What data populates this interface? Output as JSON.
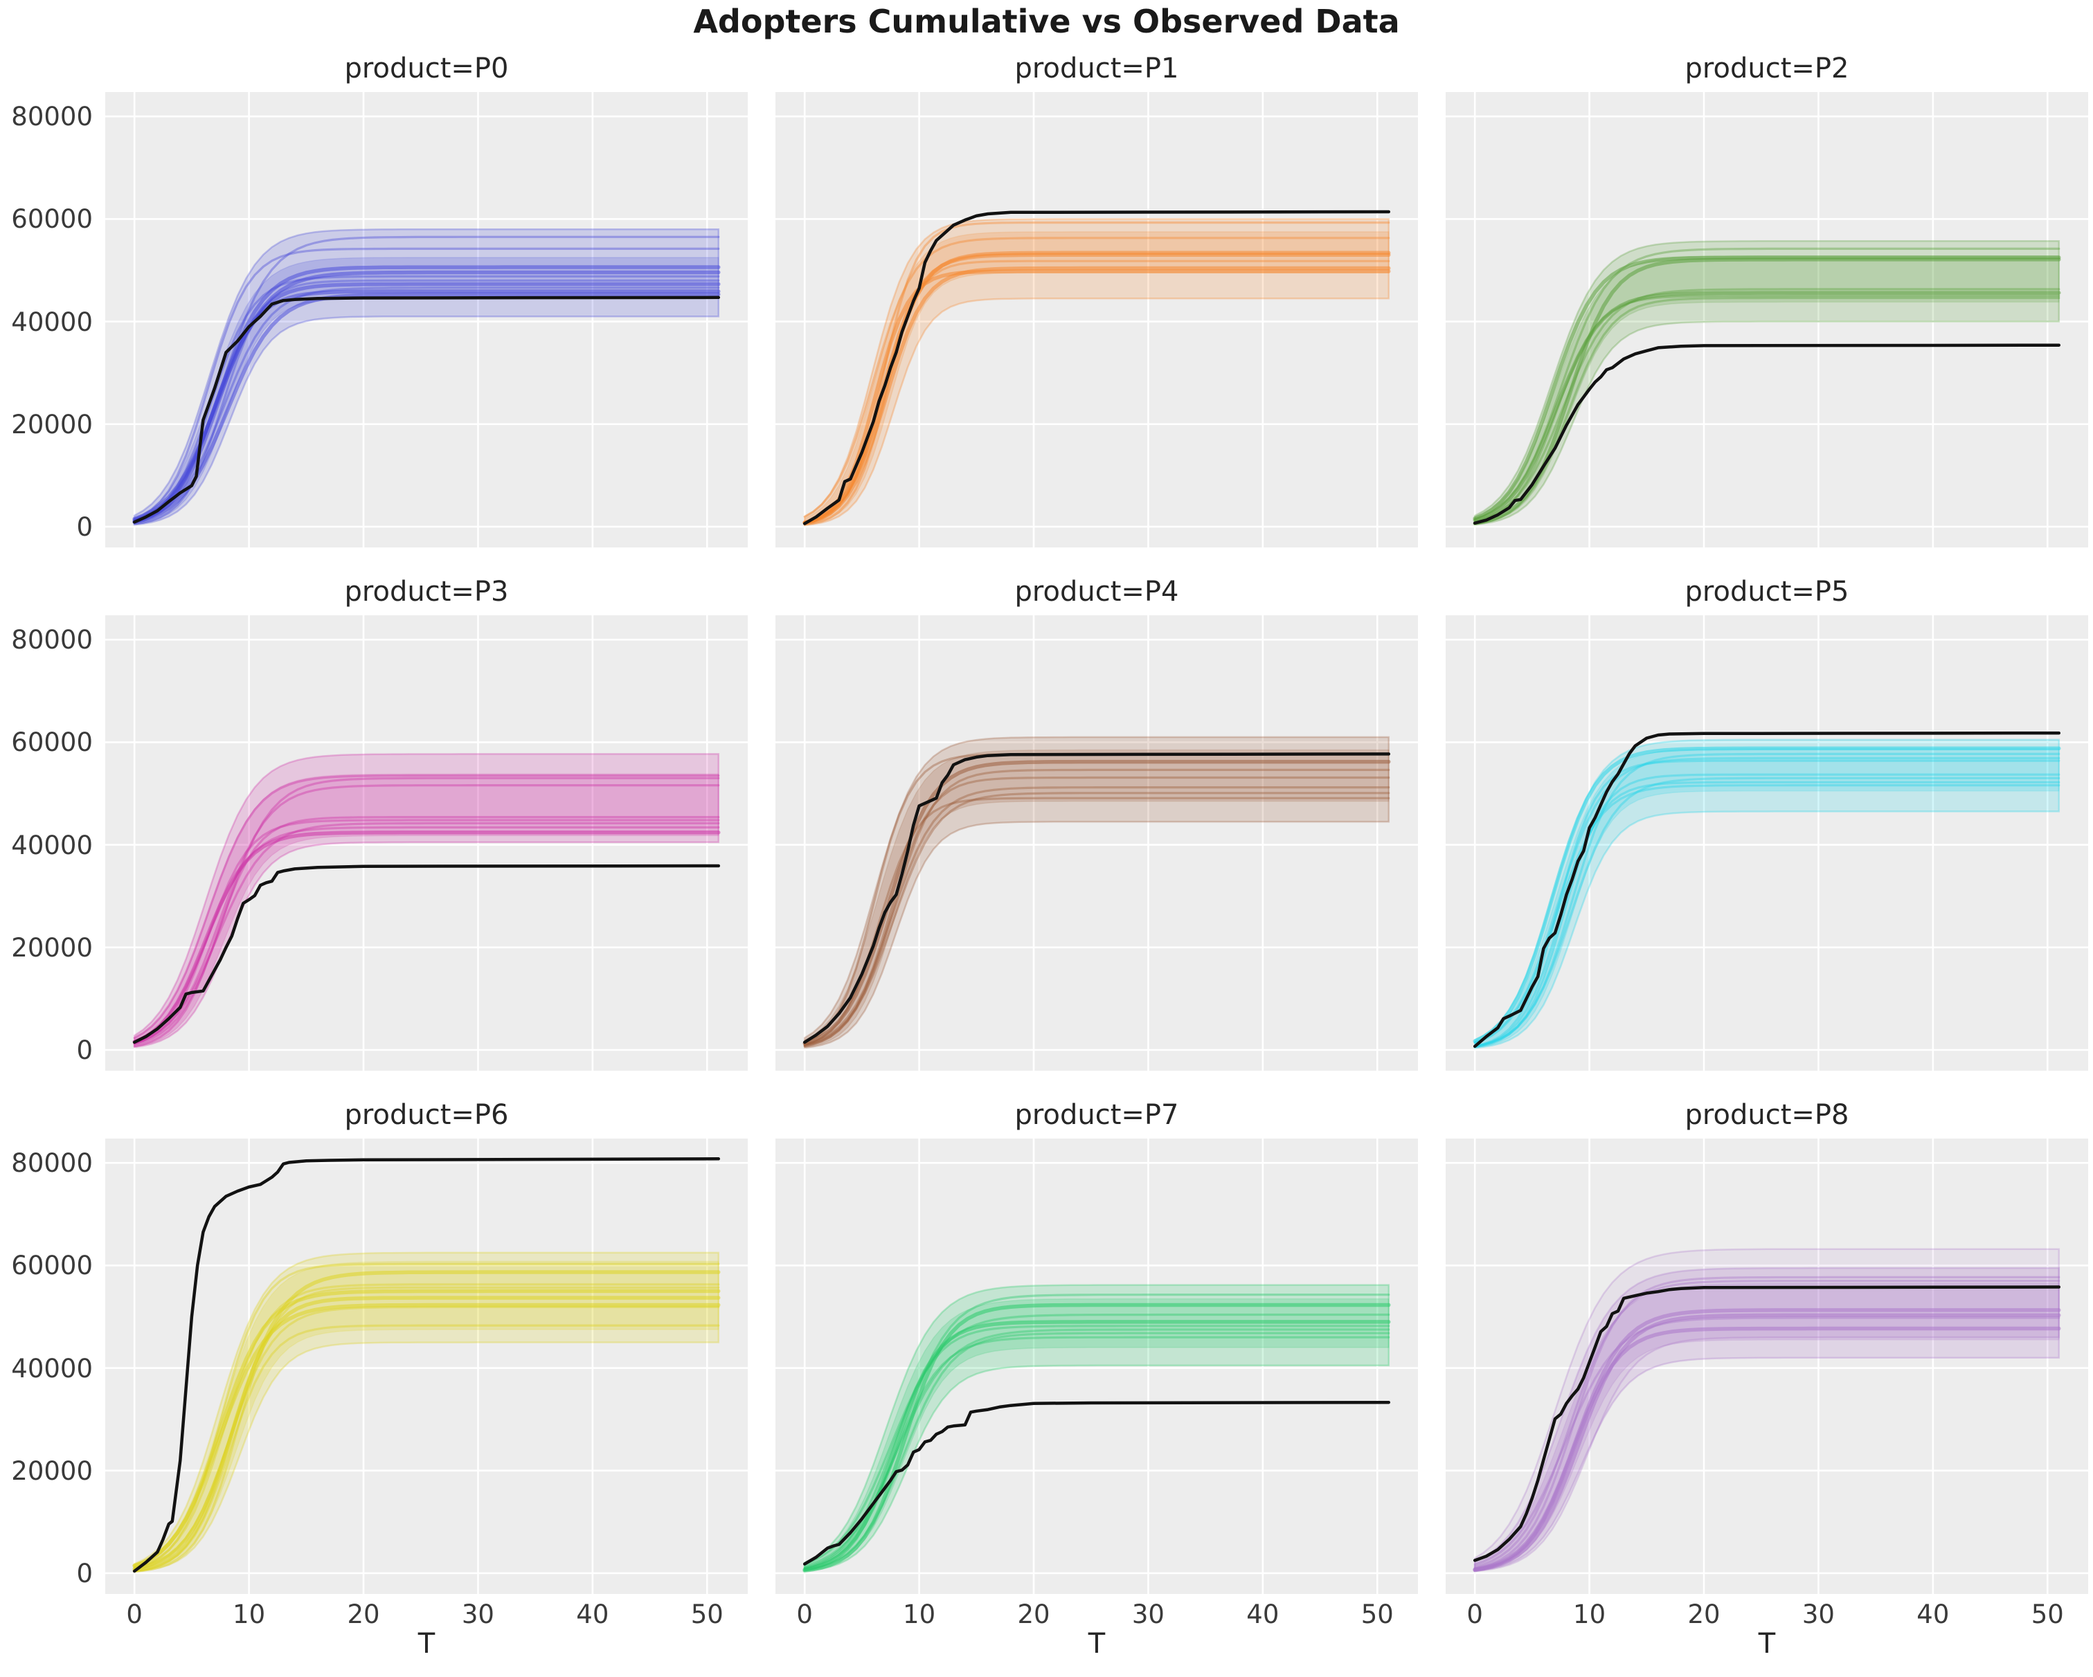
{
  "figure": {
    "title": "Adopters Cumulative vs Observed Data",
    "panel_background": "#ededed",
    "grid_color": "#ffffff",
    "observed_color": "#121212",
    "text_color": "#262626"
  },
  "x_axis": {
    "label": "T",
    "ticks": [
      0,
      10,
      20,
      30,
      40,
      50
    ],
    "range": [
      -2.55,
      53.55
    ]
  },
  "y_axis": {
    "ticks": [
      0,
      20000,
      40000,
      60000,
      80000
    ],
    "range": [
      -4050,
      84750
    ]
  },
  "chart_data": [
    {
      "type": "line",
      "product": "P0",
      "title": "product=P0",
      "color": "#4749d8",
      "band": {
        "plateau_low": 41000,
        "plateau_high": 58000,
        "midpoint": 7.2,
        "rate": 0.52
      },
      "inner_band": {
        "plateau_low": 44500,
        "plateau_high": 52500
      },
      "draw_plateaus": [
        56500,
        54200,
        50600,
        49600,
        48800,
        48000,
        47300,
        46600,
        45900,
        45300
      ],
      "observed": {
        "points": [
          [
            0,
            900
          ],
          [
            1,
            1900
          ],
          [
            2,
            3100
          ],
          [
            3,
            4900
          ],
          [
            4,
            6600
          ],
          [
            5,
            8000
          ],
          [
            5.4,
            9800
          ],
          [
            6,
            20800
          ],
          [
            7,
            27000
          ],
          [
            8,
            34000
          ],
          [
            9,
            36200
          ],
          [
            10,
            39000
          ],
          [
            11,
            41000
          ],
          [
            12,
            43400
          ],
          [
            13,
            44100
          ],
          [
            14,
            44300
          ],
          [
            16,
            44500
          ],
          [
            20,
            44600
          ],
          [
            51,
            44700
          ]
        ]
      }
    },
    {
      "type": "line",
      "product": "P1",
      "title": "product=P1",
      "color": "#f5862c",
      "band": {
        "plateau_low": 44500,
        "plateau_high": 60000,
        "midpoint": 6.6,
        "rate": 0.6
      },
      "inner_band": {
        "plateau_low": 49500,
        "plateau_high": 57500
      },
      "draw_plateaus": [
        59300,
        56300,
        53400,
        53000,
        51800,
        50400,
        49800
      ],
      "observed": {
        "points": [
          [
            0,
            600
          ],
          [
            1,
            1900
          ],
          [
            2,
            3600
          ],
          [
            3,
            5200
          ],
          [
            3.5,
            8800
          ],
          [
            4,
            9300
          ],
          [
            5,
            14500
          ],
          [
            6,
            20500
          ],
          [
            6.5,
            24500
          ],
          [
            7,
            27500
          ],
          [
            7.5,
            31000
          ],
          [
            8,
            34000
          ],
          [
            8.5,
            38000
          ],
          [
            9,
            41000
          ],
          [
            9.5,
            44000
          ],
          [
            10,
            46500
          ],
          [
            10.5,
            51500
          ],
          [
            11,
            53800
          ],
          [
            11.5,
            55800
          ],
          [
            12,
            56800
          ],
          [
            13,
            58800
          ],
          [
            14,
            59800
          ],
          [
            15,
            60600
          ],
          [
            16,
            61000
          ],
          [
            18,
            61300
          ],
          [
            51,
            61400
          ]
        ]
      }
    },
    {
      "type": "line",
      "product": "P2",
      "title": "product=P2",
      "color": "#58a03a",
      "band": {
        "plateau_low": 40000,
        "plateau_high": 55700,
        "midpoint": 7.4,
        "rate": 0.5
      },
      "inner_band": {
        "plateau_low": 43800,
        "plateau_high": 52800
      },
      "draw_plateaus": [
        54200,
        52500,
        52100,
        46300,
        45600,
        45000,
        44600
      ],
      "observed": {
        "points": [
          [
            0,
            700
          ],
          [
            1,
            1300
          ],
          [
            2,
            2300
          ],
          [
            3,
            3700
          ],
          [
            3.5,
            5100
          ],
          [
            4,
            5300
          ],
          [
            5,
            8200
          ],
          [
            6,
            11800
          ],
          [
            7,
            15300
          ],
          [
            8,
            19800
          ],
          [
            9,
            23800
          ],
          [
            10,
            26800
          ],
          [
            10.5,
            28200
          ],
          [
            11,
            29200
          ],
          [
            11.5,
            30600
          ],
          [
            12,
            31000
          ],
          [
            13,
            32700
          ],
          [
            14,
            33700
          ],
          [
            15,
            34300
          ],
          [
            16,
            34900
          ],
          [
            18,
            35200
          ],
          [
            20,
            35300
          ],
          [
            51,
            35400
          ]
        ]
      }
    },
    {
      "type": "line",
      "product": "P3",
      "title": "product=P3",
      "color": "#cc2fa4",
      "band": {
        "plateau_low": 40500,
        "plateau_high": 57700,
        "midpoint": 6.9,
        "rate": 0.5
      },
      "inner_band": {
        "plateau_low": 41800,
        "plateau_high": 53800
      },
      "draw_plateaus": [
        53500,
        53000,
        51600,
        45400,
        44800,
        44200,
        43400,
        42400
      ],
      "observed": {
        "points": [
          [
            0,
            1500
          ],
          [
            1,
            2600
          ],
          [
            2,
            4100
          ],
          [
            3,
            6100
          ],
          [
            4,
            8300
          ],
          [
            4.5,
            10900
          ],
          [
            5,
            11200
          ],
          [
            6,
            11500
          ],
          [
            7,
            15600
          ],
          [
            7.5,
            17600
          ],
          [
            8,
            20000
          ],
          [
            8.5,
            22200
          ],
          [
            9,
            25600
          ],
          [
            9.5,
            28600
          ],
          [
            10,
            29300
          ],
          [
            10.5,
            30100
          ],
          [
            11,
            32100
          ],
          [
            11.5,
            32600
          ],
          [
            12,
            32900
          ],
          [
            12.5,
            34600
          ],
          [
            13,
            34900
          ],
          [
            14,
            35300
          ],
          [
            16,
            35600
          ],
          [
            20,
            35800
          ],
          [
            51,
            35900
          ]
        ]
      }
    },
    {
      "type": "line",
      "product": "P4",
      "title": "product=P4",
      "color": "#9a5b38",
      "band": {
        "plateau_low": 44500,
        "plateau_high": 61000,
        "midpoint": 6.8,
        "rate": 0.55
      },
      "inner_band": {
        "plateau_low": 48500,
        "plateau_high": 58500
      },
      "draw_plateaus": [
        57700,
        56200,
        54600,
        53100,
        51200,
        50100,
        49100
      ],
      "observed": {
        "points": [
          [
            0,
            1500
          ],
          [
            1,
            2900
          ],
          [
            2,
            4600
          ],
          [
            3,
            7100
          ],
          [
            4,
            10200
          ],
          [
            5,
            14800
          ],
          [
            6,
            20300
          ],
          [
            6.5,
            23800
          ],
          [
            7,
            26800
          ],
          [
            7.5,
            28800
          ],
          [
            8,
            30300
          ],
          [
            8.5,
            34300
          ],
          [
            9,
            38800
          ],
          [
            9.5,
            43800
          ],
          [
            10,
            47600
          ],
          [
            11,
            48600
          ],
          [
            11.5,
            49100
          ],
          [
            12,
            52100
          ],
          [
            12.5,
            53600
          ],
          [
            13,
            55600
          ],
          [
            14,
            56600
          ],
          [
            15,
            57100
          ],
          [
            16,
            57400
          ],
          [
            18,
            57600
          ],
          [
            51,
            57700
          ]
        ]
      }
    },
    {
      "type": "line",
      "product": "P5",
      "title": "product=P5",
      "color": "#22d4e8",
      "band": {
        "plateau_low": 46500,
        "plateau_high": 60500,
        "midpoint": 7.5,
        "rate": 0.52
      },
      "inner_band": {
        "plateau_low": 50500,
        "plateau_high": 58800
      },
      "draw_plateaus": [
        58800,
        57700,
        56900,
        56400,
        53700,
        53000,
        52200,
        51600
      ],
      "observed": {
        "points": [
          [
            0,
            700
          ],
          [
            1,
            2600
          ],
          [
            2,
            4300
          ],
          [
            2.5,
            6100
          ],
          [
            3,
            6600
          ],
          [
            4,
            7700
          ],
          [
            5,
            12300
          ],
          [
            5.5,
            14300
          ],
          [
            6,
            19800
          ],
          [
            6.5,
            21800
          ],
          [
            7,
            22800
          ],
          [
            7.5,
            26300
          ],
          [
            8,
            30300
          ],
          [
            8.5,
            33300
          ],
          [
            9,
            36800
          ],
          [
            9.5,
            38800
          ],
          [
            10,
            43300
          ],
          [
            10.5,
            45300
          ],
          [
            11,
            47800
          ],
          [
            11.5,
            50300
          ],
          [
            12,
            52300
          ],
          [
            12.5,
            53800
          ],
          [
            13,
            55800
          ],
          [
            13.5,
            57800
          ],
          [
            14,
            59300
          ],
          [
            15,
            60800
          ],
          [
            16,
            61400
          ],
          [
            17,
            61600
          ],
          [
            20,
            61700
          ],
          [
            51,
            61800
          ]
        ]
      }
    },
    {
      "type": "line",
      "product": "P6",
      "title": "product=P6",
      "color": "#ddd21e",
      "band": {
        "plateau_low": 45000,
        "plateau_high": 62500,
        "midpoint": 8.0,
        "rate": 0.5
      },
      "inner_band": {
        "plateau_low": 47500,
        "plateau_high": 60800
      },
      "draw_plateaus": [
        60300,
        58700,
        56300,
        55700,
        55000,
        53700,
        52300,
        51900,
        48300
      ],
      "observed": {
        "points": [
          [
            0,
            400
          ],
          [
            1,
            2100
          ],
          [
            2,
            4100
          ],
          [
            2.5,
            6600
          ],
          [
            3,
            9600
          ],
          [
            3.3,
            10100
          ],
          [
            4,
            22000
          ],
          [
            4.5,
            36000
          ],
          [
            5,
            50000
          ],
          [
            5.5,
            60000
          ],
          [
            6,
            66500
          ],
          [
            6.5,
            69500
          ],
          [
            7,
            71500
          ],
          [
            7.5,
            72500
          ],
          [
            8,
            73500
          ],
          [
            9,
            74500
          ],
          [
            10,
            75300
          ],
          [
            11,
            75800
          ],
          [
            11.5,
            76500
          ],
          [
            12,
            77200
          ],
          [
            12.5,
            78200
          ],
          [
            13,
            79800
          ],
          [
            13.5,
            80100
          ],
          [
            14,
            80200
          ],
          [
            15,
            80400
          ],
          [
            17,
            80500
          ],
          [
            20,
            80600
          ],
          [
            51,
            80800
          ]
        ]
      }
    },
    {
      "type": "line",
      "product": "P7",
      "title": "product=P7",
      "color": "#25c968",
      "band": {
        "plateau_low": 40500,
        "plateau_high": 56200,
        "midpoint": 7.8,
        "rate": 0.48
      },
      "inner_band": {
        "plateau_low": 44000,
        "plateau_high": 53500
      },
      "draw_plateaus": [
        54300,
        52300,
        50400,
        49000,
        48200,
        47500,
        46800,
        46000
      ],
      "observed": {
        "points": [
          [
            0,
            1800
          ],
          [
            1,
            3100
          ],
          [
            2,
            4900
          ],
          [
            2.5,
            5300
          ],
          [
            3,
            5600
          ],
          [
            4,
            7900
          ],
          [
            5,
            10600
          ],
          [
            6,
            13600
          ],
          [
            7,
            16600
          ],
          [
            7.5,
            18100
          ],
          [
            8,
            19800
          ],
          [
            8.5,
            20100
          ],
          [
            9,
            21100
          ],
          [
            9.5,
            23600
          ],
          [
            10,
            24100
          ],
          [
            10.5,
            25600
          ],
          [
            11,
            25900
          ],
          [
            11.5,
            27100
          ],
          [
            12,
            27600
          ],
          [
            12.5,
            28500
          ],
          [
            13,
            28700
          ],
          [
            14,
            28900
          ],
          [
            14.5,
            31400
          ],
          [
            15,
            31600
          ],
          [
            16,
            31900
          ],
          [
            17,
            32400
          ],
          [
            18,
            32700
          ],
          [
            19,
            32900
          ],
          [
            20,
            33100
          ],
          [
            25,
            33200
          ],
          [
            51,
            33300
          ]
        ]
      }
    },
    {
      "type": "line",
      "product": "P8",
      "title": "product=P8",
      "color": "#a873c9",
      "band": {
        "plateau_low": 42000,
        "plateau_high": 59500,
        "midpoint": 8.2,
        "rate": 0.45
      },
      "inner_band": {
        "plateau_low": 45500,
        "plateau_high": 56500
      },
      "extra_band": {
        "plateau_low": 46000,
        "plateau_high": 63200
      },
      "draw_plateaus": [
        57700,
        57000,
        51300,
        50300,
        49800,
        47700
      ],
      "observed": {
        "points": [
          [
            0,
            2500
          ],
          [
            1,
            3300
          ],
          [
            2,
            4600
          ],
          [
            3,
            6600
          ],
          [
            4,
            9100
          ],
          [
            4.5,
            11600
          ],
          [
            5,
            14600
          ],
          [
            5.5,
            18100
          ],
          [
            6,
            22100
          ],
          [
            6.5,
            26100
          ],
          [
            7,
            30100
          ],
          [
            7.5,
            31000
          ],
          [
            8,
            33100
          ],
          [
            8.5,
            34600
          ],
          [
            9,
            35900
          ],
          [
            9.5,
            38100
          ],
          [
            10,
            41100
          ],
          [
            10.5,
            44100
          ],
          [
            11,
            47100
          ],
          [
            11.5,
            48100
          ],
          [
            12,
            50600
          ],
          [
            12.5,
            51100
          ],
          [
            13,
            53600
          ],
          [
            14,
            54100
          ],
          [
            15,
            54600
          ],
          [
            16,
            54900
          ],
          [
            17,
            55300
          ],
          [
            18,
            55500
          ],
          [
            20,
            55700
          ],
          [
            51,
            55800
          ]
        ]
      }
    }
  ]
}
